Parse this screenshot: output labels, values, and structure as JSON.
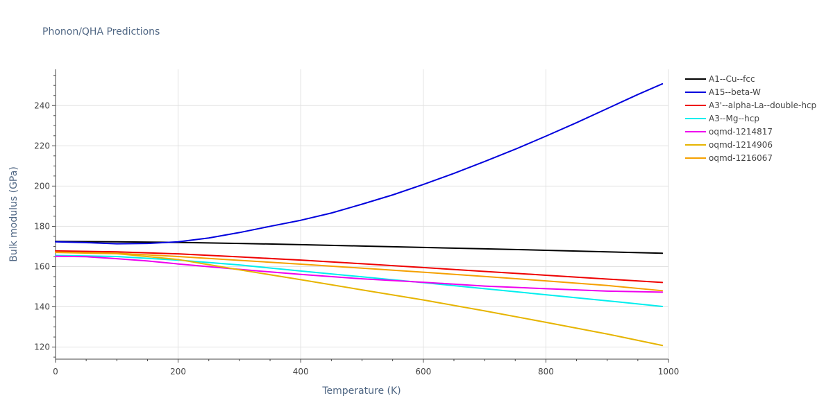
{
  "chart_data": {
    "type": "line",
    "title": "Phonon/QHA Predictions",
    "xlabel": "Temperature (K)",
    "ylabel": "Bulk modulus (GPa)",
    "xlim": [
      0,
      1000
    ],
    "ylim": [
      114,
      258
    ],
    "xticks": [
      0,
      200,
      400,
      600,
      800,
      1000
    ],
    "yticks": [
      120,
      140,
      160,
      180,
      200,
      220,
      240
    ],
    "grid": true,
    "legend_position": "top-right",
    "series": [
      {
        "name": "A1--Cu--fcc",
        "color": "#000000",
        "x": [
          0,
          100,
          200,
          300,
          400,
          500,
          600,
          700,
          800,
          900,
          990
        ],
        "y": [
          172.5,
          172.3,
          172.0,
          171.5,
          170.9,
          170.2,
          169.5,
          168.8,
          168.1,
          167.3,
          166.6
        ]
      },
      {
        "name": "A15--beta-W",
        "color": "#0000dd",
        "x": [
          0,
          50,
          100,
          150,
          200,
          250,
          300,
          350,
          400,
          450,
          500,
          550,
          600,
          650,
          700,
          750,
          800,
          850,
          900,
          950,
          990
        ],
        "y": [
          172.3,
          171.9,
          171.3,
          171.5,
          172.3,
          174.2,
          176.9,
          180.0,
          183.0,
          186.6,
          191.0,
          195.6,
          200.8,
          206.3,
          212.2,
          218.3,
          224.8,
          231.5,
          238.5,
          245.5,
          250.8
        ]
      },
      {
        "name": "A3'--alpha-La--double-hcp",
        "color": "#ee0000",
        "x": [
          0,
          100,
          200,
          300,
          400,
          500,
          600,
          700,
          800,
          900,
          990
        ],
        "y": [
          167.8,
          167.3,
          166.3,
          164.8,
          163.2,
          161.4,
          159.5,
          157.6,
          155.7,
          153.8,
          152.1
        ]
      },
      {
        "name": "A3--Mg--hcp",
        "color": "#00eeee",
        "x": [
          0,
          100,
          200,
          300,
          400,
          500,
          600,
          700,
          800,
          900,
          990
        ],
        "y": [
          165.5,
          165.0,
          163.2,
          160.8,
          157.8,
          154.9,
          152.0,
          149.0,
          146.0,
          143.0,
          140.2
        ]
      },
      {
        "name": "oqmd-1214817",
        "color": "#ee00ee",
        "x": [
          0,
          50,
          100,
          150,
          200,
          300,
          400,
          500,
          600,
          700,
          800,
          900,
          990
        ],
        "y": [
          165.1,
          164.9,
          163.9,
          162.8,
          161.3,
          158.6,
          156.1,
          153.9,
          152.2,
          150.3,
          149.0,
          147.8,
          147.3
        ]
      },
      {
        "name": "oqmd-1214906",
        "color": "#e6b400",
        "x": [
          0,
          100,
          200,
          300,
          400,
          500,
          600,
          700,
          800,
          900,
          990
        ],
        "y": [
          167.0,
          166.4,
          163.5,
          158.4,
          153.5,
          148.4,
          143.4,
          138.0,
          132.3,
          126.5,
          120.8
        ]
      },
      {
        "name": "oqmd-1216067",
        "color": "#f5a000",
        "x": [
          0,
          100,
          200,
          300,
          400,
          500,
          600,
          700,
          800,
          900,
          990
        ],
        "y": [
          167.2,
          166.6,
          165.0,
          163.1,
          161.2,
          159.2,
          157.2,
          155.1,
          152.9,
          150.6,
          148.0
        ]
      }
    ]
  }
}
